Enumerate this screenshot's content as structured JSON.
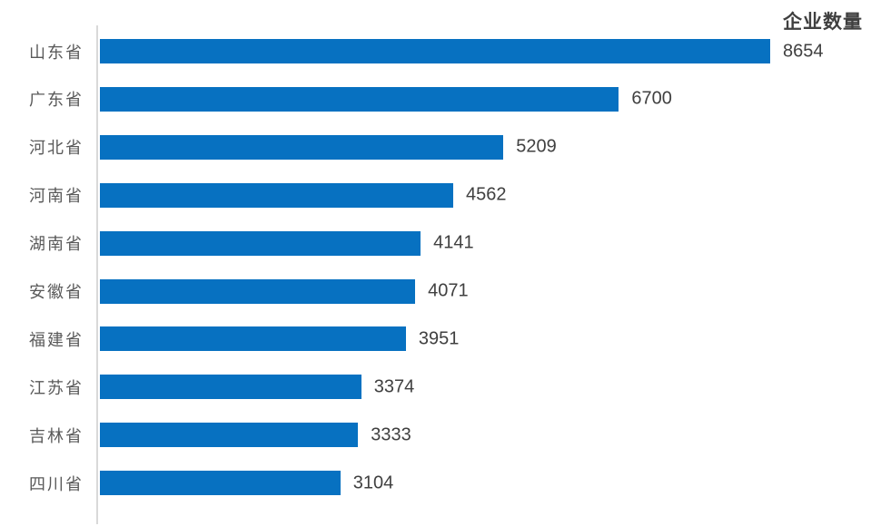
{
  "chart_data": {
    "type": "bar",
    "orientation": "horizontal",
    "title": "企业数量",
    "categories": [
      "山东省",
      "广东省",
      "河北省",
      "河南省",
      "湖南省",
      "安徽省",
      "福建省",
      "江苏省",
      "吉林省",
      "四川省"
    ],
    "values": [
      8654,
      6700,
      5209,
      4562,
      4141,
      4071,
      3951,
      3374,
      3333,
      3104
    ],
    "xlabel": "",
    "ylabel": "",
    "xlim": [
      0,
      9960
    ],
    "grid": false,
    "legend": false,
    "data_labels": true,
    "bar_color": "#0771c1",
    "axis_line_color": "#d9d9d9",
    "label_color": "#595959",
    "value_color": "#404040",
    "title_color": "#404040"
  }
}
